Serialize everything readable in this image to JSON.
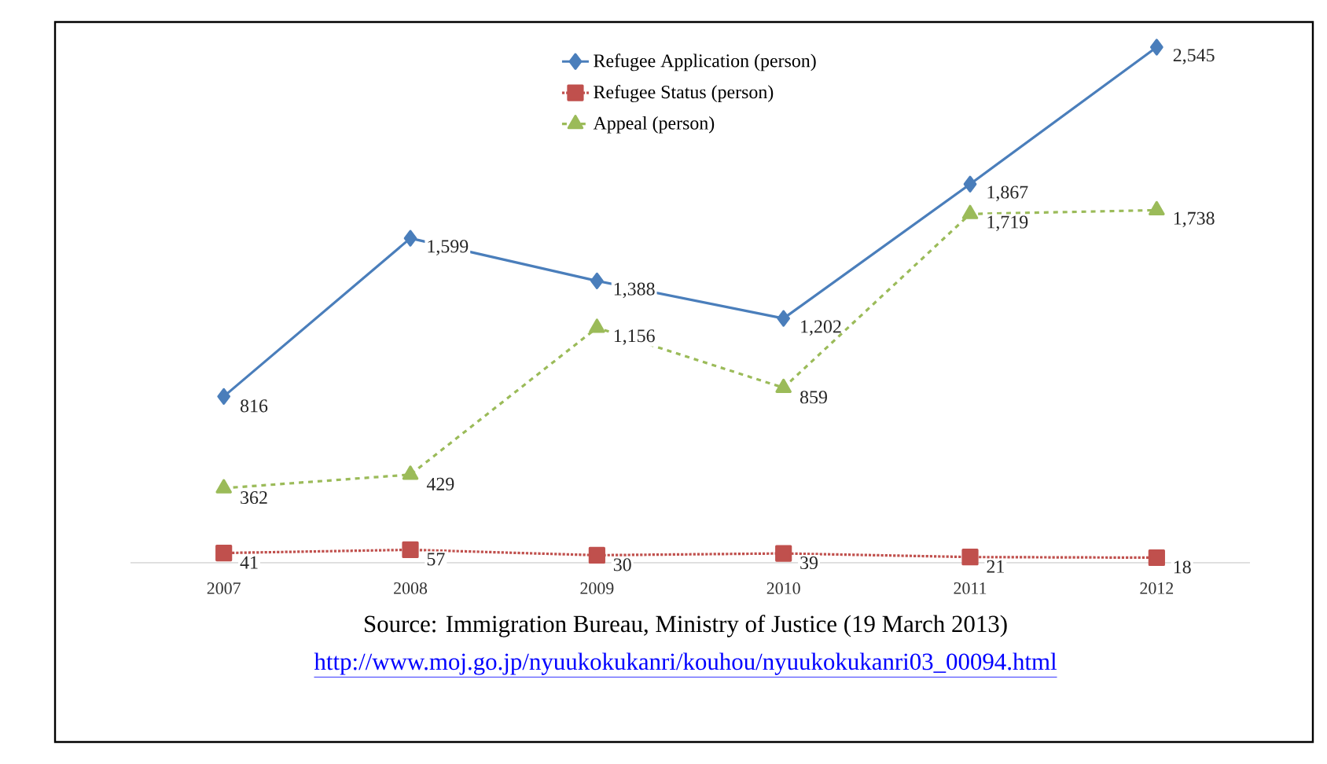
{
  "chart_data": {
    "type": "line",
    "categories": [
      "2007",
      "2008",
      "2009",
      "2010",
      "2011",
      "2012"
    ],
    "series": [
      {
        "name": "Refugee Application (person)",
        "color": "#4a7ebb",
        "marker": "diamond",
        "line_style": "solid",
        "values": [
          816,
          1599,
          1388,
          1202,
          1867,
          2545
        ],
        "value_labels": [
          "816",
          "1,599",
          "1,388",
          "1,202",
          "1,867",
          "2,545"
        ]
      },
      {
        "name": "Refugee Status (person)",
        "color": "#c0504d",
        "marker": "square",
        "line_style": "dotted",
        "values": [
          41,
          57,
          30,
          39,
          21,
          18
        ],
        "value_labels": [
          "41",
          "57",
          "30",
          "39",
          "21",
          "18"
        ]
      },
      {
        "name": "Appeal (person)",
        "color": "#9bbb59",
        "marker": "triangle",
        "line_style": "dashed",
        "values": [
          362,
          429,
          1156,
          859,
          1719,
          1738
        ],
        "value_labels": [
          "362",
          "429",
          "1,156",
          "859",
          "1,719",
          "1,738"
        ]
      }
    ],
    "tick_labels": "x",
    "grid": false,
    "legend": "top",
    "annotations": [
      "Source: Immigration Bureau, Ministry of Justice (19 March 2013)",
      "http://www.moj.go.jp/nyuukokukanri/kouhou/nyuukokukanri03_00094.html"
    ]
  }
}
